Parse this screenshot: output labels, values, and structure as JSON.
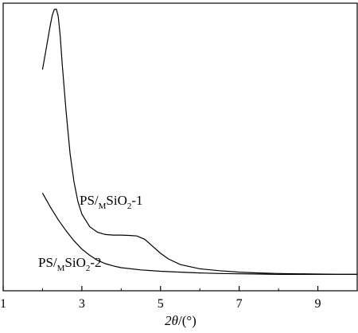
{
  "chart_data": {
    "type": "line",
    "title": "",
    "xlabel": "2θ/(°)",
    "xlabel_parts": {
      "var": "2θ",
      "unit": "/(°)"
    },
    "ylabel": "",
    "xlim": [
      1,
      10
    ],
    "ylim": [
      0,
      100
    ],
    "xticks": [
      1,
      3,
      5,
      7,
      9
    ],
    "xtick_labels": [
      "1",
      "3",
      "5",
      "7",
      "9"
    ],
    "y_tick_labels_shown": false,
    "grid": false,
    "legend": "none",
    "line_color": "#000000",
    "series": [
      {
        "name": "PS/MSiO2-1",
        "label_parts": {
          "a": "PS/",
          "sub1": "M",
          "b": "SiO",
          "sub2": "2",
          "c": "-1"
        },
        "x": [
          2.0,
          2.1,
          2.2,
          2.25,
          2.3,
          2.35,
          2.4,
          2.45,
          2.5,
          2.6,
          2.7,
          2.8,
          2.9,
          3.0,
          3.2,
          3.4,
          3.6,
          3.8,
          4.0,
          4.2,
          4.4,
          4.6,
          4.8,
          5.0,
          5.2,
          5.5,
          6.0,
          6.5,
          7.0,
          7.5,
          8.0,
          8.5,
          9.0,
          9.5,
          10.0
        ],
        "y": [
          78.0,
          86.0,
          94.0,
          97.5,
          99.5,
          99.6,
          97.0,
          90.0,
          80.0,
          63.0,
          48.0,
          38.0,
          31.0,
          26.5,
          22.0,
          20.0,
          19.2,
          19.0,
          19.0,
          18.9,
          18.7,
          17.5,
          15.0,
          12.5,
          10.5,
          8.5,
          7.0,
          6.3,
          5.8,
          5.5,
          5.3,
          5.2,
          5.1,
          5.0,
          5.0
        ]
      },
      {
        "name": "PS/MSiO2-2",
        "label_parts": {
          "a": "PS/",
          "sub1": "M",
          "b": "SiO",
          "sub2": "2",
          "c": "-2"
        },
        "x": [
          2.0,
          2.2,
          2.4,
          2.6,
          2.8,
          3.0,
          3.2,
          3.4,
          3.6,
          3.8,
          4.0,
          4.5,
          5.0,
          5.5,
          6.0,
          6.5,
          7.0,
          7.5,
          8.0,
          8.5,
          9.0,
          9.5,
          10.0
        ],
        "y": [
          34.0,
          29.0,
          24.5,
          20.5,
          17.0,
          14.0,
          11.8,
          10.0,
          8.8,
          8.0,
          7.4,
          6.6,
          6.1,
          5.8,
          5.5,
          5.3,
          5.2,
          5.1,
          5.0,
          5.0,
          5.0,
          5.0,
          5.0
        ]
      }
    ]
  }
}
